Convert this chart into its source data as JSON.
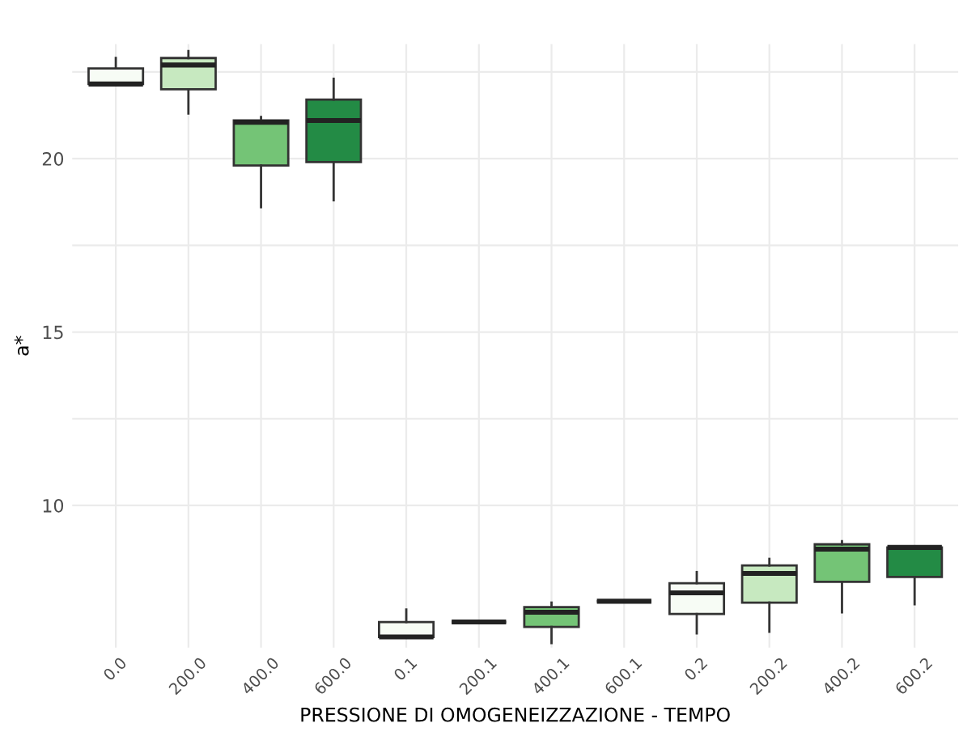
{
  "chart_data": {
    "type": "box",
    "xlabel": "PRESSIONE DI OMOGENEIZZAZIONE - TEMPO",
    "ylabel": "a*",
    "categories": [
      "0.0",
      "200.0",
      "400.0",
      "600.0",
      "0.1",
      "200.1",
      "400.1",
      "600.1",
      "0.2",
      "200.2",
      "400.2",
      "600.2"
    ],
    "colors": [
      "#f7fcf5",
      "#c7e9c0",
      "#74c476",
      "#238b45",
      "#f7fcf5",
      "#333333",
      "#74c476",
      "#333333",
      "#f7fcf5",
      "#c7e9c0",
      "#74c476",
      "#238b45"
    ],
    "boxes": [
      {
        "low": 22.15,
        "q1": 22.15,
        "median": 22.15,
        "q3": 22.6,
        "high": 22.9
      },
      {
        "low": 21.3,
        "q1": 22.0,
        "median": 22.7,
        "q3": 22.9,
        "high": 23.1
      },
      {
        "low": 18.6,
        "q1": 19.8,
        "median": 21.05,
        "q3": 21.1,
        "high": 21.2
      },
      {
        "low": 18.8,
        "q1": 19.9,
        "median": 21.1,
        "q3": 21.7,
        "high": 22.3
      },
      {
        "low": 6.21,
        "q1": 6.21,
        "median": 6.21,
        "q3": 6.64,
        "high": 7.0
      },
      {
        "low": 6.64,
        "q1": 6.64,
        "median": 6.64,
        "q3": 6.64,
        "high": 6.64
      },
      {
        "low": 6.03,
        "q1": 6.5,
        "median": 6.92,
        "q3": 7.07,
        "high": 7.2
      },
      {
        "low": 7.24,
        "q1": 7.24,
        "median": 7.24,
        "q3": 7.24,
        "high": 7.24
      },
      {
        "low": 6.31,
        "q1": 6.87,
        "median": 7.48,
        "q3": 7.76,
        "high": 8.08
      },
      {
        "low": 6.36,
        "q1": 7.2,
        "median": 8.04,
        "q3": 8.27,
        "high": 8.46
      },
      {
        "low": 6.92,
        "q1": 7.8,
        "median": 8.74,
        "q3": 8.88,
        "high": 8.97
      },
      {
        "low": 7.15,
        "q1": 7.94,
        "median": 8.79,
        "q3": 8.79,
        "high": 8.79
      }
    ],
    "ylim": [
      5.9,
      23.3
    ],
    "yticks": [
      10,
      {
        "value": 12.5,
        "label": null
      },
      15,
      {
        "value": 17.5,
        "label": null
      },
      20,
      {
        "value": 22.5,
        "label": null
      }
    ],
    "grid": true
  }
}
